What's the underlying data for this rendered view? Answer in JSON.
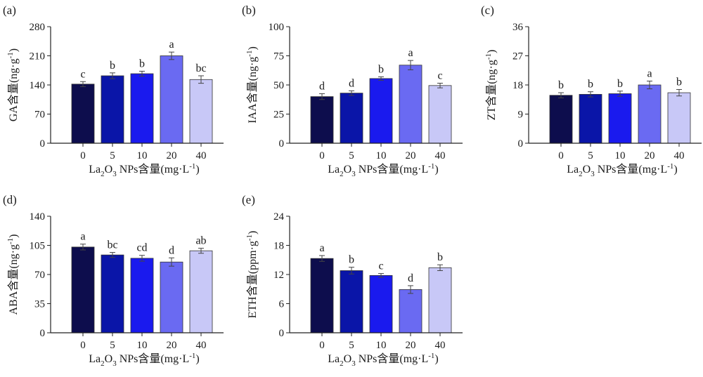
{
  "figure_name": "",
  "colors": [
    "#0d0d4d",
    "#0a15a8",
    "#1a1aee",
    "#6a6af2",
    "#c8c8f7"
  ],
  "x_label_parts": {
    "pre": "La",
    "sub1": "2",
    "mid": "O",
    "sub2": "3",
    "post": " NPs含量(mg·L",
    "sup": "-1",
    "end": ")"
  },
  "chart_data": [
    {
      "type": "bar",
      "panel": "(a)",
      "categories": [
        "0",
        "5",
        "10",
        "20",
        "40"
      ],
      "values": [
        142,
        162,
        167,
        210,
        153
      ],
      "errors": [
        6,
        7,
        6,
        9,
        9
      ],
      "letters": [
        "c",
        "b",
        "b",
        "a",
        "bc"
      ],
      "ylabel_main": "GA含量(ng·g",
      "ylabel_sup": "-1",
      "ylabel_end": ")",
      "ylim": [
        0,
        280
      ],
      "yticks": [
        0,
        70,
        140,
        210,
        280
      ],
      "xlabel": "La2O3 NPs含量(mg·L-1)"
    },
    {
      "type": "bar",
      "panel": "(b)",
      "categories": [
        "0",
        "5",
        "10",
        "20",
        "40"
      ],
      "values": [
        40,
        43,
        55.5,
        67,
        49.5
      ],
      "errors": [
        2.5,
        2,
        1.5,
        4,
        2
      ],
      "letters": [
        "d",
        "d",
        "b",
        "a",
        "c"
      ],
      "ylabel_main": "IAA含量(ng·g",
      "ylabel_sup": "-1",
      "ylabel_end": ")",
      "ylim": [
        0,
        100
      ],
      "yticks": [
        0,
        25,
        50,
        75,
        100
      ],
      "xlabel": "La2O3 NPs含量(mg·L-1)"
    },
    {
      "type": "bar",
      "panel": "(c)",
      "categories": [
        "0",
        "5",
        "10",
        "20",
        "40"
      ],
      "values": [
        14.8,
        15.1,
        15.3,
        18,
        15.6
      ],
      "errors": [
        0.8,
        0.8,
        0.8,
        1.2,
        1
      ],
      "letters": [
        "b",
        "b",
        "b",
        "a",
        "b"
      ],
      "ylabel_main": "ZT含量(ng·g",
      "ylabel_sup": "-1",
      "ylabel_end": ")",
      "ylim": [
        0,
        36
      ],
      "yticks": [
        0,
        9,
        18,
        27,
        36
      ],
      "xlabel": "La2O3 NPs含量(mg·L-1)"
    },
    {
      "type": "bar",
      "panel": "(d)",
      "categories": [
        "0",
        "5",
        "10",
        "20",
        "40"
      ],
      "values": [
        103,
        93.5,
        89.5,
        85,
        98.5
      ],
      "errors": [
        3.5,
        3,
        3.5,
        5,
        3
      ],
      "letters": [
        "a",
        "bc",
        "cd",
        "d",
        "ab"
      ],
      "ylabel_main": "ABA含量(ng·g",
      "ylabel_sup": "-1",
      "ylabel_end": ")",
      "ylim": [
        0,
        140
      ],
      "yticks": [
        0,
        35,
        70,
        105,
        140
      ],
      "xlabel": "La2O3 NPs含量(mg·L-1)"
    },
    {
      "type": "bar",
      "panel": "(e)",
      "categories": [
        "0",
        "5",
        "10",
        "20",
        "40"
      ],
      "values": [
        15.3,
        12.8,
        11.8,
        8.9,
        13.4
      ],
      "errors": [
        0.6,
        0.7,
        0.4,
        0.8,
        0.6
      ],
      "letters": [
        "a",
        "b",
        "c",
        "d",
        "b"
      ],
      "ylabel_main": "ETH含量(ppm·g",
      "ylabel_sup": "-1",
      "ylabel_end": ")",
      "ylim": [
        0,
        24
      ],
      "yticks": [
        0,
        6,
        12,
        18,
        24
      ],
      "xlabel": "La2O3 NPs含量(mg·L-1)"
    }
  ]
}
